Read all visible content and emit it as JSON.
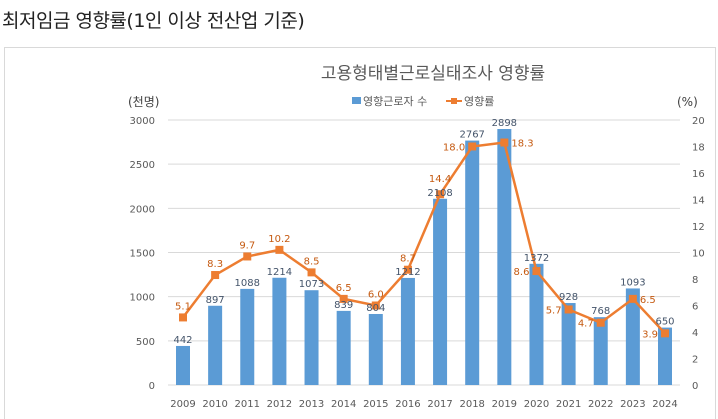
{
  "page": {
    "title": "최저임금 영향률(1인 이상 전산업 기준)"
  },
  "chart_data": {
    "type": "bar+line",
    "title": "고용형태별근로실태조사 영향률",
    "left_unit": "(천명)",
    "right_unit": "(%)",
    "legend_position": "top",
    "categories": [
      "2009",
      "2010",
      "2011",
      "2012",
      "2013",
      "2014",
      "2015",
      "2016",
      "2017",
      "2018",
      "2019",
      "2020",
      "2021",
      "2022",
      "2023",
      "2024"
    ],
    "series": [
      {
        "name": "영향근로자 수",
        "type": "bar",
        "axis": "left",
        "color": "#5b9bd5",
        "values": [
          442,
          897,
          1088,
          1214,
          1073,
          839,
          804,
          1212,
          2108,
          2767,
          2898,
          1372,
          928,
          768,
          1093,
          650
        ]
      },
      {
        "name": "영향률",
        "type": "line",
        "axis": "right",
        "color": "#ed7d31",
        "values": [
          5.1,
          8.3,
          9.7,
          10.2,
          8.5,
          6.5,
          6.0,
          8.7,
          14.4,
          18.0,
          18.3,
          8.6,
          5.7,
          4.7,
          6.5,
          3.9
        ],
        "labels": [
          "5.1",
          "8.3",
          "9.7",
          "10.2",
          "8.5",
          "6.5",
          "6.0",
          "8.7",
          "14.4",
          "18.0",
          "18.3",
          "8.6",
          "5.7",
          "4.7",
          "6.5",
          "3.9"
        ]
      }
    ],
    "y_left": {
      "min": 0,
      "max": 3000,
      "ticks": [
        "0",
        "500",
        "1000",
        "1500",
        "2000",
        "2500",
        "3000"
      ]
    },
    "y_right": {
      "min": 0,
      "max": 20,
      "ticks": [
        "0",
        "2",
        "4",
        "6",
        "8",
        "10",
        "12",
        "14",
        "16",
        "18",
        "20"
      ]
    },
    "grid": true
  }
}
